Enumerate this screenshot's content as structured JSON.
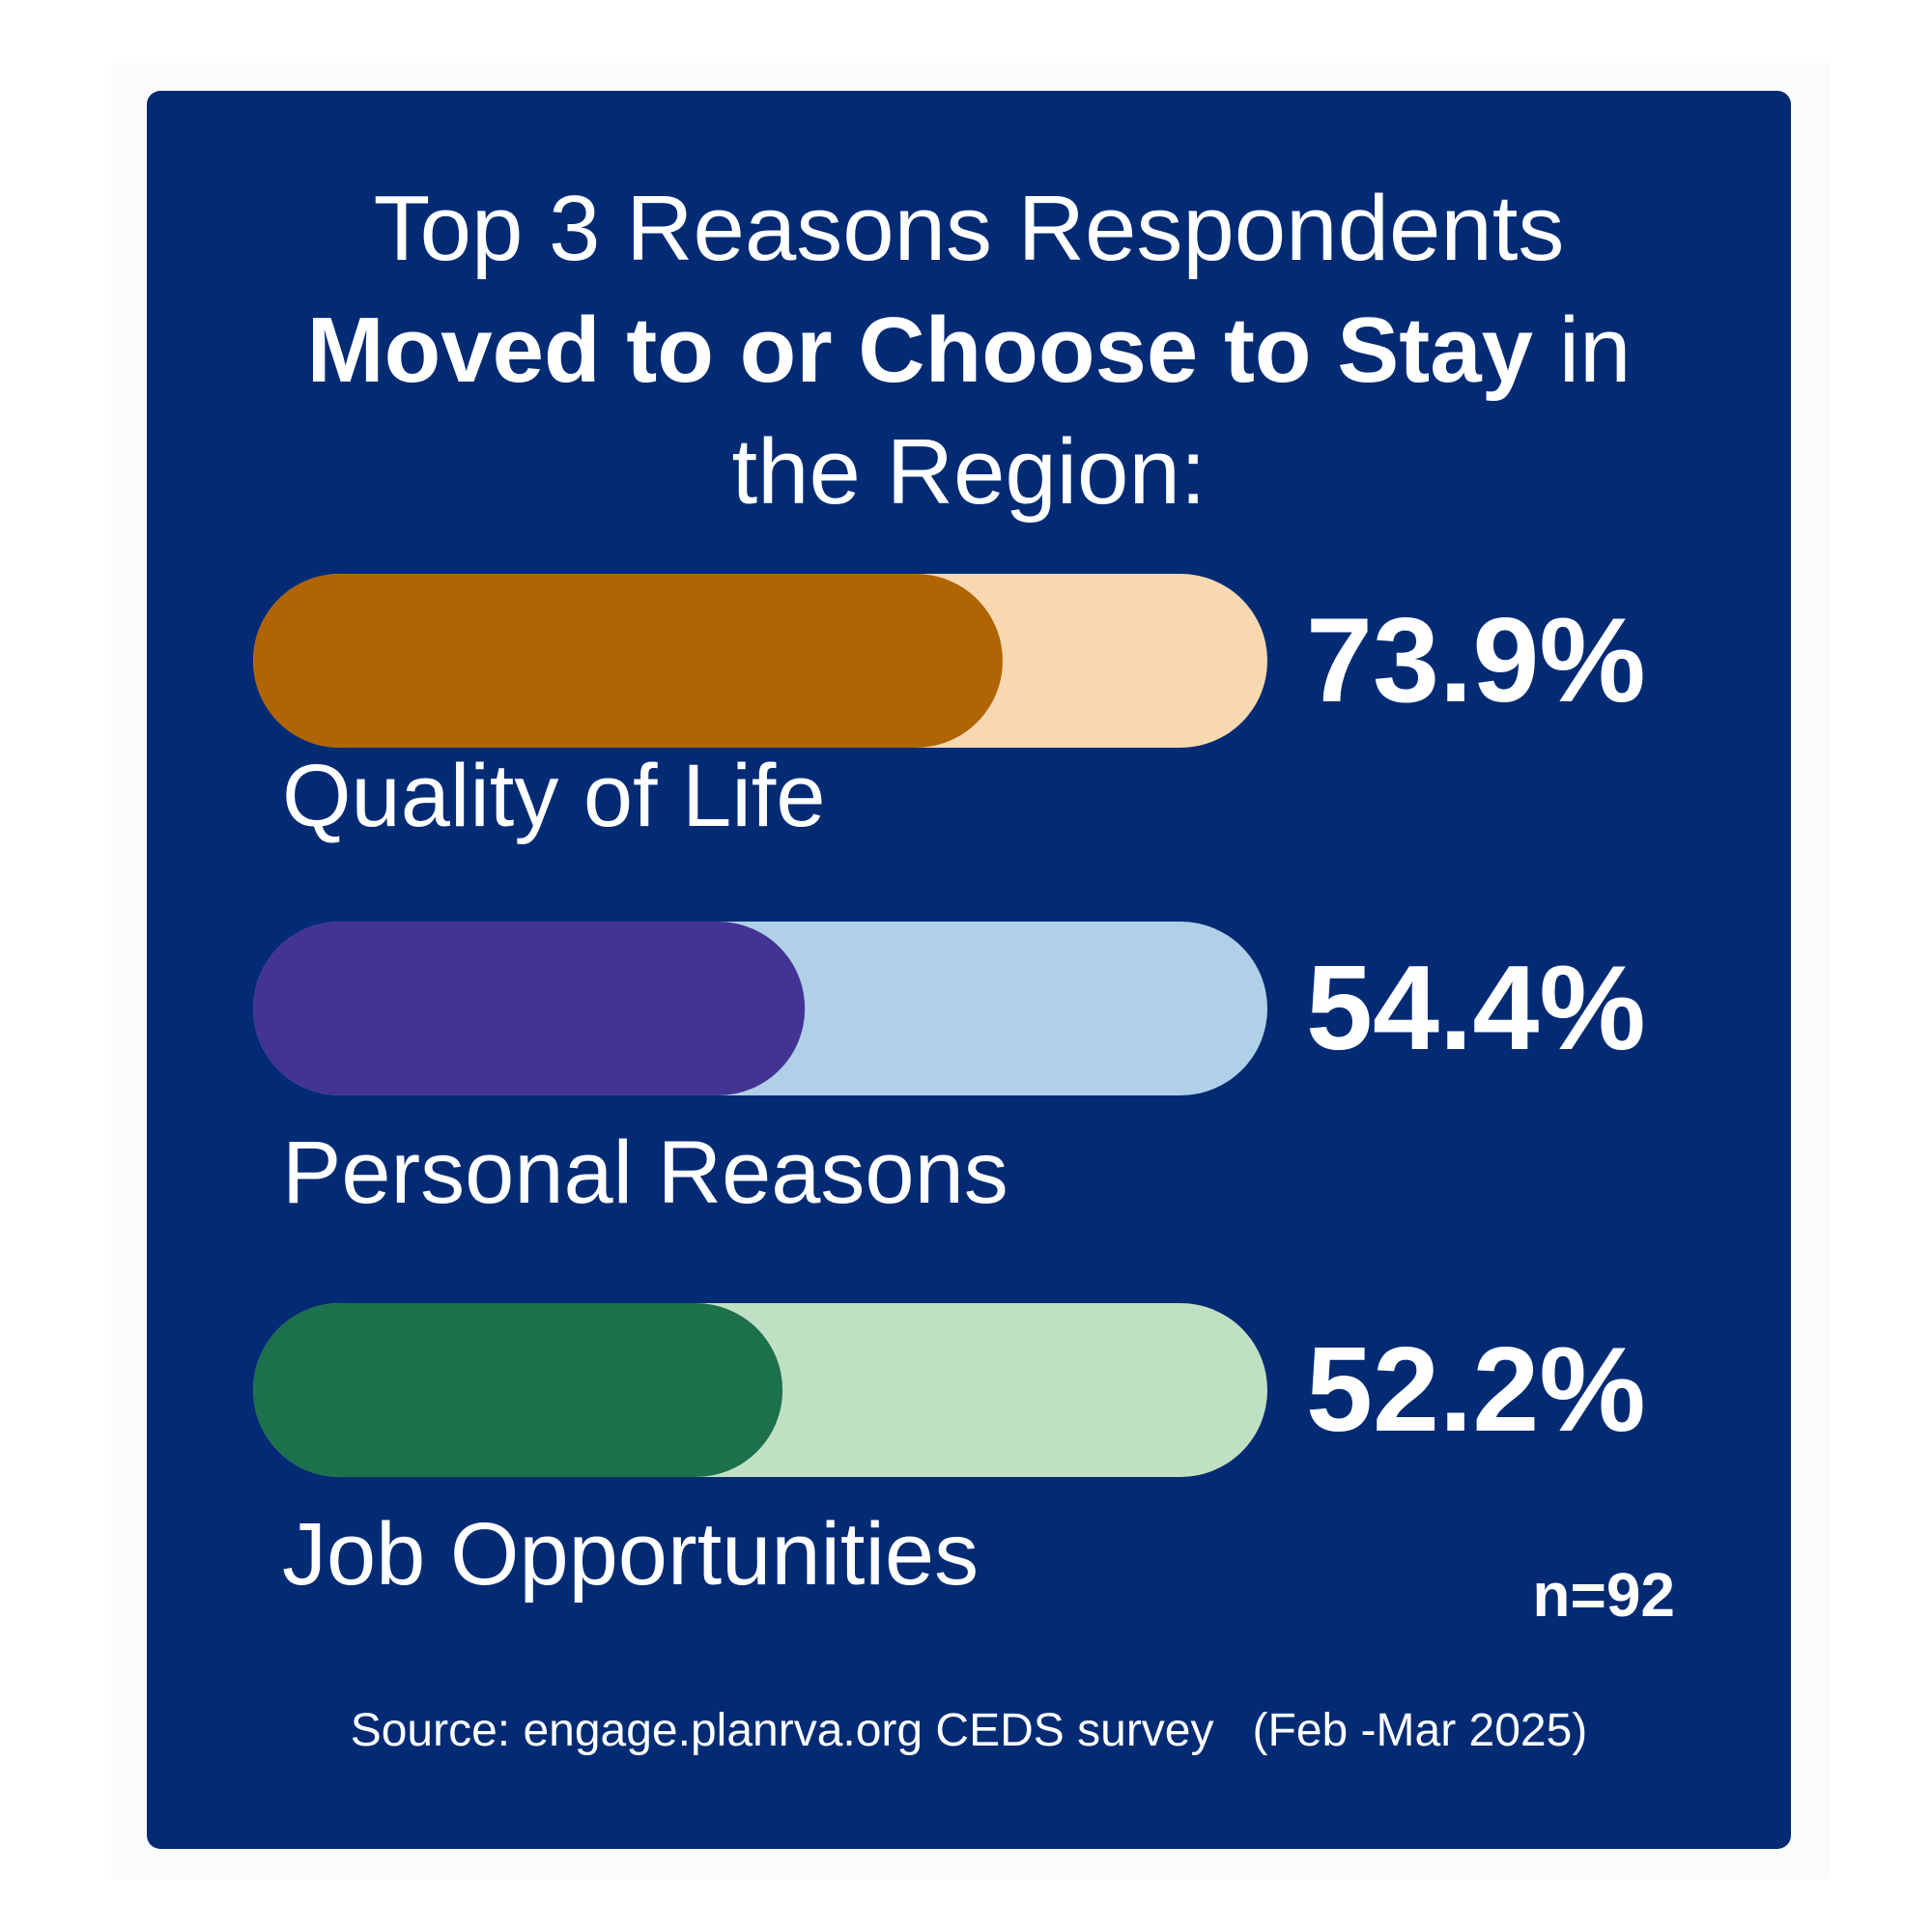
{
  "chart_data": {
    "type": "bar",
    "title_parts": {
      "line1": "Top 3 Reasons Respondents",
      "bold": "Moved to or Choose to Stay",
      "after_bold": " in",
      "line3": "the Region:"
    },
    "categories": [
      "Quality of Life",
      "Personal Reasons",
      "Job Opportunities"
    ],
    "values": [
      73.9,
      54.4,
      52.2
    ],
    "value_labels": [
      "73.9%",
      "54.4%",
      "52.2%"
    ],
    "ylim": [
      0,
      100
    ],
    "fill_colors": [
      "#b06404",
      "#433394",
      "#1c704c"
    ],
    "track_colors": [
      "#f8d8b0",
      "#b0d0e8",
      "#c0e0c4"
    ],
    "sample_size": "n=92",
    "source": "Source: engage.planrva.org CEDS survey   (Feb -Mar 2025)"
  }
}
